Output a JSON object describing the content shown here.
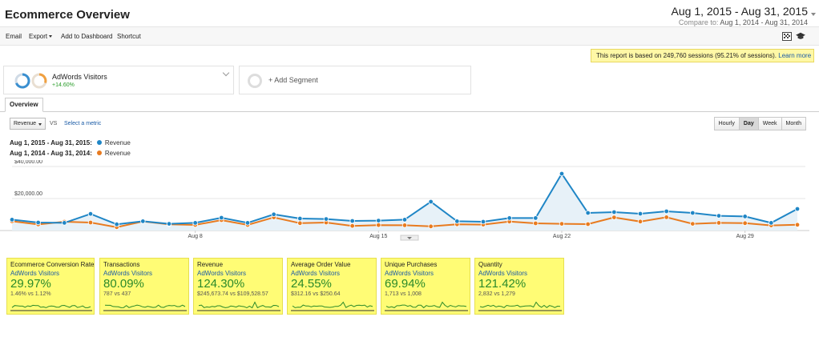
{
  "title": "Ecommerce Overview",
  "date_range": {
    "main": "Aug 1, 2015 - Aug 31, 2015",
    "compare_label": "Compare to:",
    "compare_value": "Aug 1, 2014 - Aug 31, 2014"
  },
  "toolbar": {
    "email": "Email",
    "export": "Export",
    "add_to_dashboard": "Add to Dashboard",
    "shortcut": "Shortcut",
    "icons": [
      "pivot-icon",
      "education-icon"
    ]
  },
  "notice": {
    "text": "This report is based on 249,760 sessions (95.21% of sessions).",
    "link": "Learn more"
  },
  "segments": {
    "active": {
      "name": "AdWords Visitors",
      "change": "+14.60%"
    },
    "add_label": "+ Add Segment"
  },
  "tabs": [
    {
      "label": "Overview"
    }
  ],
  "controls": {
    "metric": "Revenue",
    "vs": "VS",
    "select_metric": "Select a metric",
    "granularity": [
      "Hourly",
      "Day",
      "Week",
      "Month"
    ],
    "active_granularity": "Day"
  },
  "legend": [
    {
      "range": "Aug 1, 2015 - Aug 31, 2015:",
      "name": "Revenue",
      "color": "#1f86c6"
    },
    {
      "range": "Aug 1, 2014 - Aug 31, 2014:",
      "name": "Revenue",
      "color": "#e87b20"
    }
  ],
  "chart_data": {
    "type": "line",
    "x": [
      1,
      2,
      3,
      4,
      5,
      6,
      7,
      8,
      9,
      10,
      11,
      12,
      13,
      14,
      15,
      16,
      17,
      18,
      19,
      20,
      21,
      22,
      23,
      24,
      25,
      26,
      27,
      28,
      29,
      30,
      31
    ],
    "xticks": [
      {
        "day": 8,
        "label": "Aug 8"
      },
      {
        "day": 15,
        "label": "Aug 15"
      },
      {
        "day": 22,
        "label": "Aug 22"
      },
      {
        "day": 29,
        "label": "Aug 29"
      }
    ],
    "yticks": [
      {
        "value": 40000,
        "label": "$40,000.00"
      },
      {
        "value": 20000,
        "label": "$20,000.00"
      }
    ],
    "ylim": [
      0,
      40000
    ],
    "series": [
      {
        "name": "Revenue",
        "color": "#1f86c6",
        "values": [
          6800,
          5000,
          4800,
          10400,
          3900,
          5800,
          4200,
          4800,
          8000,
          4800,
          10100,
          7500,
          7200,
          6000,
          6200,
          6800,
          18000,
          5800,
          5500,
          7800,
          7800,
          35500,
          11000,
          11500,
          10500,
          12000,
          11000,
          9200,
          8800,
          4800,
          13500
        ]
      },
      {
        "name": "Revenue",
        "color": "#e87b20",
        "values": [
          5800,
          3800,
          5500,
          5000,
          2100,
          5700,
          3900,
          3500,
          6500,
          3500,
          8200,
          4600,
          5000,
          2900,
          3400,
          3300,
          2600,
          3900,
          3700,
          5600,
          4500,
          4200,
          4000,
          8200,
          5600,
          8300,
          4200,
          4800,
          4600,
          3200,
          3600
        ]
      }
    ]
  },
  "scorecards": [
    {
      "title": "Ecommerce Conversion Rate",
      "segment": "AdWords Visitors",
      "value": "29.97%",
      "sub": "1.46% vs 1.12%"
    },
    {
      "title": "Transactions",
      "segment": "AdWords Visitors",
      "value": "80.09%",
      "sub": "787 vs 437"
    },
    {
      "title": "Revenue",
      "segment": "AdWords Visitors",
      "value": "124.30%",
      "sub": "$245,673.74 vs $109,528.57"
    },
    {
      "title": "Average Order Value",
      "segment": "AdWords Visitors",
      "value": "24.55%",
      "sub": "$312.16 vs $250.64"
    },
    {
      "title": "Unique Purchases",
      "segment": "AdWords Visitors",
      "value": "69.94%",
      "sub": "1,713 vs 1,008"
    },
    {
      "title": "Quantity",
      "segment": "AdWords Visitors",
      "value": "121.42%",
      "sub": "2,832 vs 1,279"
    }
  ]
}
